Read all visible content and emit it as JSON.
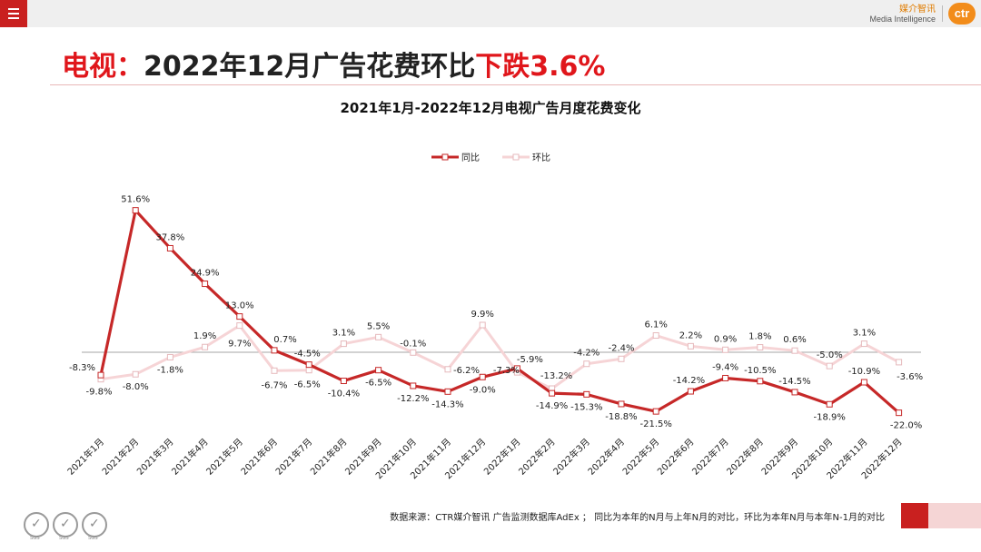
{
  "header": {
    "brand_cn": "媒介智讯",
    "brand_en": "Media Intelligence",
    "brand_logo": "ctr"
  },
  "page_title": {
    "prefix": "电视：",
    "main": "2022年12月广告花费环比",
    "highlight": "下跌3.6%"
  },
  "footer": {
    "source": "数据来源：CTR媒介智讯 广告监测数据库AdEx ； 同比为本年的N月与上年N月的对比，环比为本年N月与本年N-1月的对比",
    "badges": [
      "SGS",
      "SGS",
      "SGS"
    ]
  },
  "colors": {
    "accent": "#c9201f",
    "yoy_line": "#c62828",
    "mom_line": "#f6d4d6",
    "title_red": "#e0161b"
  },
  "chart_data": {
    "type": "line",
    "title": "2021年1月-2022年12月电视广告月度花费变化",
    "categories": [
      "2021年1月",
      "2021年2月",
      "2021年3月",
      "2021年4月",
      "2021年5月",
      "2021年6月",
      "2021年7月",
      "2021年8月",
      "2021年9月",
      "2021年10月",
      "2021年11月",
      "2021年12月",
      "2022年1月",
      "2022年2月",
      "2022年3月",
      "2022年4月",
      "2022年5月",
      "2022年6月",
      "2022年7月",
      "2022年8月",
      "2022年9月",
      "2022年10月",
      "2022年11月",
      "2022年12月"
    ],
    "series": [
      {
        "name": "同比",
        "values": [
          -8.3,
          51.6,
          37.8,
          24.9,
          13.0,
          0.7,
          -4.5,
          -10.4,
          -6.5,
          -12.2,
          -14.3,
          -9.0,
          -5.9,
          -14.9,
          -15.3,
          -18.8,
          -21.5,
          -14.2,
          -9.4,
          -10.5,
          -14.5,
          -18.9,
          -10.9,
          -22.0
        ],
        "labels": [
          "-8.3%",
          "51.6%",
          "37.8%",
          "24.9%",
          "13.0%",
          "0.7%",
          "-4.5%",
          "-10.4%",
          "-6.5%",
          "-12.2%",
          "-14.3%",
          "-9.0%",
          "-5.9%",
          "-14.9%",
          "-15.3%",
          "-18.8%",
          "-21.5%",
          "-14.2%",
          "-9.4%",
          "-10.5%",
          "-14.5%",
          "-18.9%",
          "-10.9%",
          "-22.0%"
        ]
      },
      {
        "name": "环比",
        "values": [
          -9.8,
          -8.0,
          -1.8,
          1.9,
          9.7,
          -6.7,
          -6.5,
          3.1,
          5.5,
          -0.1,
          -6.2,
          9.9,
          -7.3,
          -13.2,
          -4.2,
          -2.4,
          6.1,
          2.2,
          0.9,
          1.8,
          0.6,
          -5.0,
          3.1,
          -3.6
        ],
        "labels": [
          "-9.8%",
          "-8.0%",
          "-1.8%",
          "1.9%",
          "9.7%",
          "-6.7%",
          "-6.5%",
          "3.1%",
          "5.5%",
          "-0.1%",
          "-6.2%",
          "9.9%",
          "-7.3%",
          "-13.2%",
          "-4.2%",
          "-2.4%",
          "6.1%",
          "2.2%",
          "0.9%",
          "1.8%",
          "0.6%",
          "-5.0%",
          "3.1%",
          "-3.6%"
        ]
      }
    ],
    "legend": "top-center",
    "grid": false,
    "ylim": [
      -30,
      55
    ]
  }
}
